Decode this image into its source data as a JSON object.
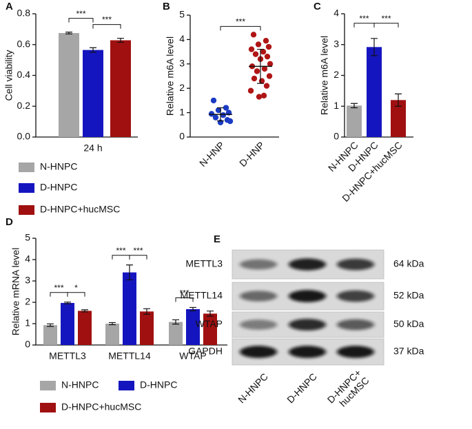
{
  "chart_data": [
    {
      "type": "bar",
      "panel": "A",
      "ylabel": "Cell viability",
      "categories": [
        "24 h"
      ],
      "series": [
        {
          "name": "N-HNPC",
          "color": "#a6a6a6",
          "values": [
            0.675
          ],
          "errors": [
            0.006
          ]
        },
        {
          "name": "D-HNPC",
          "color": "#1515c0",
          "values": [
            0.565
          ],
          "errors": [
            0.015
          ]
        },
        {
          "name": "D-HNPC+hucMSC",
          "color": "#a01010",
          "values": [
            0.628
          ],
          "errors": [
            0.013
          ]
        }
      ],
      "ylim": [
        0,
        0.8
      ],
      "yticks": [
        {
          "value": 0,
          "label": "0.0"
        },
        0.2,
        0.4,
        0.6,
        0.8
      ],
      "comparisons": [
        {
          "category": 0,
          "pair": [
            0,
            1
          ],
          "label": "***"
        },
        {
          "category": 0,
          "pair": [
            1,
            2
          ],
          "label": "***"
        }
      ]
    },
    {
      "type": "scatter",
      "panel": "B",
      "ylabel": "Relative m6A level",
      "categories": [
        "N-HNP",
        "D-HNP"
      ],
      "groups": [
        {
          "color": "#1a3bc4",
          "values": [
            1.5,
            1.2,
            1.1,
            1.0,
            0.95,
            0.9,
            0.8,
            0.7,
            0.6,
            0.65
          ],
          "mean": 0.93,
          "sd": 0.27
        },
        {
          "color": "#b01515",
          "values": [
            4.2,
            3.95,
            3.8,
            3.7,
            3.6,
            3.5,
            3.4,
            3.3,
            3.2,
            3.0,
            2.9,
            2.8,
            2.7,
            2.5,
            2.4,
            2.3,
            2.1,
            1.9,
            1.7,
            1.65
          ],
          "mean": 2.9,
          "sd": 0.7
        }
      ],
      "ylim": [
        0,
        5
      ],
      "yticks": [
        0,
        1,
        2,
        3,
        4,
        5
      ],
      "comparisons": [
        {
          "pair": [
            0,
            1
          ],
          "label": "***"
        }
      ]
    },
    {
      "type": "bar",
      "panel": "C",
      "ylabel": "Relative m6A level",
      "categories": [
        "N-HNPC",
        "D-HNPC",
        "D-HNPC+hucMSC"
      ],
      "values": [
        1.02,
        2.92,
        1.2
      ],
      "errors": [
        0.07,
        0.28,
        0.2
      ],
      "colors": [
        "#a6a6a6",
        "#1515c0",
        "#a01010"
      ],
      "ylim": [
        0,
        4
      ],
      "yticks": [
        0,
        1,
        2,
        3,
        4
      ],
      "comparisons": [
        {
          "pair": [
            0,
            1
          ],
          "label": "***"
        },
        {
          "pair": [
            1,
            2
          ],
          "label": "***"
        }
      ]
    },
    {
      "type": "bar",
      "panel": "D",
      "ylabel": "Relative mRNA level",
      "categories": [
        "METTL3",
        "METTL14",
        "WTAP"
      ],
      "series": [
        {
          "name": "N-HNPC",
          "color": "#a6a6a6",
          "values": [
            0.93,
            1.0,
            1.08
          ],
          "errors": [
            0.06,
            0.05,
            0.1
          ]
        },
        {
          "name": "D-HNPC",
          "color": "#1515c0",
          "values": [
            1.97,
            3.4,
            1.68
          ],
          "errors": [
            0.04,
            0.35,
            0.08
          ]
        },
        {
          "name": "D-HNPC+hucMSC",
          "color": "#a01010",
          "values": [
            1.6,
            1.57,
            1.47
          ],
          "errors": [
            0.05,
            0.13,
            0.12
          ]
        }
      ],
      "ylim": [
        0,
        5
      ],
      "yticks": [
        0,
        1,
        2,
        3,
        4,
        5
      ],
      "comparisons": [
        {
          "category": 0,
          "pair": [
            0,
            1
          ],
          "label": "***"
        },
        {
          "category": 0,
          "pair": [
            1,
            2
          ],
          "label": "*"
        },
        {
          "category": 1,
          "pair": [
            0,
            1
          ],
          "label": "***"
        },
        {
          "category": 1,
          "pair": [
            1,
            2
          ],
          "label": "***"
        },
        {
          "category": 2,
          "pair": [
            0,
            1
          ],
          "label": "***"
        }
      ]
    },
    {
      "type": "blot",
      "panel": "E",
      "rows": [
        {
          "label": "METTL3",
          "size": "64 kDa"
        },
        {
          "label": "METTL14",
          "size": "52 kDa"
        },
        {
          "label": "WTAP",
          "size": "50 kDa"
        },
        {
          "label": "GAPDH",
          "size": "37 kDa"
        }
      ],
      "columns": [
        [
          "N-HNPC"
        ],
        [
          "D-HNPC"
        ],
        [
          "D-HNPC+",
          "hucMSC"
        ]
      ]
    }
  ]
}
